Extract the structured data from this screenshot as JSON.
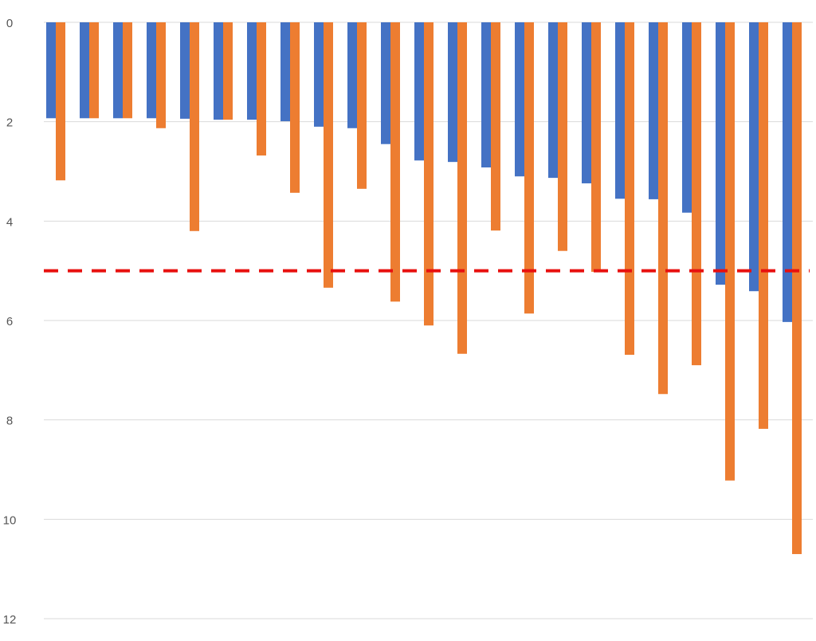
{
  "chart_data": {
    "type": "bar",
    "categories": [
      null,
      null,
      null,
      null,
      null,
      null,
      null,
      null,
      null,
      null,
      null,
      null,
      null,
      null,
      null,
      null,
      null,
      null,
      null,
      null,
      null,
      null,
      null
    ],
    "series": [
      {
        "color": "#4472c4",
        "values": [
          1.93,
          1.93,
          1.93,
          1.93,
          1.94,
          1.96,
          1.96,
          1.99,
          2.1,
          2.13,
          2.45,
          2.78,
          2.81,
          2.92,
          3.1,
          3.13,
          3.24,
          3.55,
          3.56,
          3.83,
          5.28,
          5.41,
          6.03
        ]
      },
      {
        "color": "#ed7d31",
        "values": [
          3.18,
          1.93,
          1.93,
          2.13,
          4.2,
          1.96,
          2.68,
          3.43,
          5.34,
          3.35,
          5.62,
          6.1,
          6.67,
          4.19,
          5.86,
          4.6,
          5.02,
          6.69,
          7.48,
          6.9,
          9.22,
          8.18,
          10.7
        ]
      }
    ],
    "ylim": [
      0,
      12
    ],
    "yticks": [
      0,
      2,
      4,
      6,
      8,
      10,
      12
    ],
    "y_inverted": true,
    "grid": true,
    "reference_line": {
      "value": 5,
      "color": "#e8100f",
      "style": "dashed"
    }
  }
}
